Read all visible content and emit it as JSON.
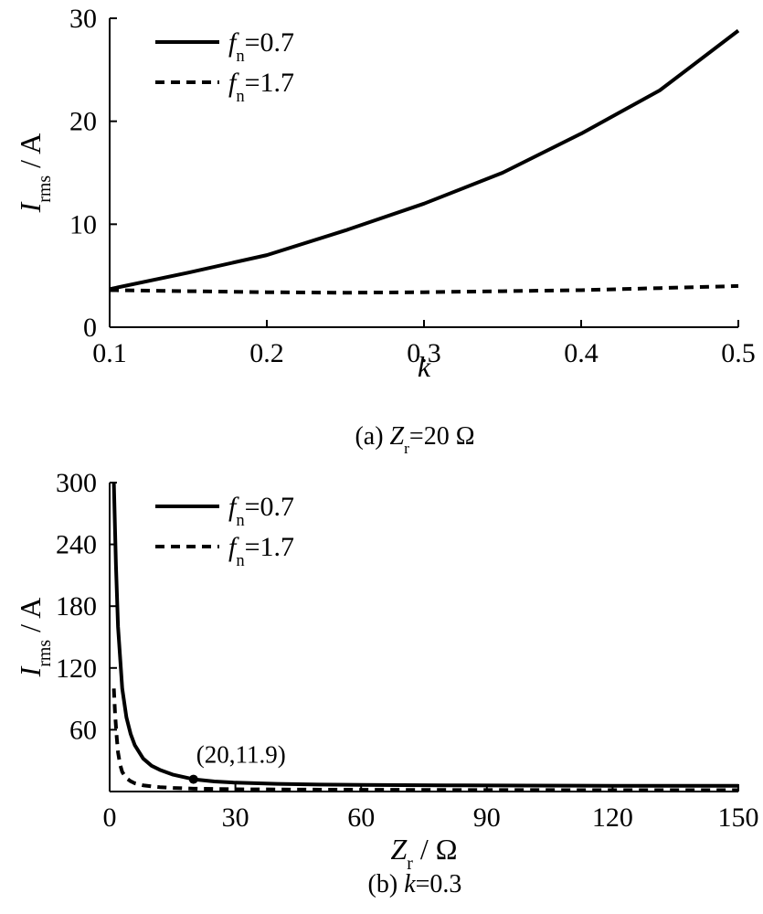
{
  "chart_data": [
    {
      "type": "line",
      "caption": {
        "prefix": "(a)",
        "var": "Z",
        "sub": "r",
        "rest": "=20 Ω"
      },
      "xlabel": {
        "var": "k",
        "sub": "",
        "rest": ""
      },
      "ylabel": {
        "var": "I",
        "sub": "rms",
        "rest": " / A"
      },
      "xlim": [
        0.1,
        0.5
      ],
      "ylim": [
        0,
        30
      ],
      "xticks": [
        0.1,
        0.2,
        0.3,
        0.4,
        0.5
      ],
      "xtick_labels": [
        "0.1",
        "0.2",
        "0.3",
        "0.4",
        "0.5"
      ],
      "yticks": [
        0,
        10,
        20,
        30
      ],
      "ytick_labels": [
        "0",
        "10",
        "20",
        "30"
      ],
      "legend_position": "top-left",
      "series": [
        {
          "name": {
            "var": "f",
            "sub": "n",
            "rest": "=0.7"
          },
          "style": "solid",
          "x": [
            0.1,
            0.15,
            0.2,
            0.25,
            0.3,
            0.35,
            0.4,
            0.45,
            0.5
          ],
          "y": [
            3.7,
            5.3,
            7.0,
            9.4,
            12.0,
            15.0,
            18.8,
            23.0,
            28.8
          ]
        },
        {
          "name": {
            "var": "f",
            "sub": "n",
            "rest": "=1.7"
          },
          "style": "dashed",
          "x": [
            0.1,
            0.15,
            0.2,
            0.25,
            0.3,
            0.35,
            0.4,
            0.45,
            0.5
          ],
          "y": [
            3.6,
            3.5,
            3.4,
            3.35,
            3.4,
            3.5,
            3.6,
            3.8,
            4.0
          ]
        }
      ]
    },
    {
      "type": "line",
      "caption": {
        "prefix": "(b)",
        "var": "k",
        "sub": "",
        "rest": "=0.3"
      },
      "xlabel": {
        "var": "Z",
        "sub": "r",
        "rest": " / Ω"
      },
      "ylabel": {
        "var": "I",
        "sub": "rms",
        "rest": " / A"
      },
      "xlim": [
        0,
        150
      ],
      "ylim": [
        0,
        300
      ],
      "xticks": [
        0,
        30,
        60,
        90,
        120,
        150
      ],
      "xtick_labels": [
        "0",
        "30",
        "60",
        "90",
        "120",
        "150"
      ],
      "yticks": [
        60,
        120,
        180,
        240,
        300
      ],
      "ytick_labels": [
        "60",
        "120",
        "180",
        "240",
        "300"
      ],
      "legend_position": "top-left",
      "annotation": {
        "text": "(20,11.9)",
        "x": 20,
        "y": 11.9
      },
      "series": [
        {
          "name": {
            "var": "f",
            "sub": "n",
            "rest": "=0.7"
          },
          "style": "solid",
          "x": [
            1,
            1.5,
            2,
            3,
            4,
            5,
            6,
            8,
            10,
            12,
            15,
            20,
            25,
            30,
            40,
            50,
            60,
            80,
            100,
            120,
            150
          ],
          "y": [
            300,
            220,
            160,
            100,
            72,
            56,
            45,
            32,
            25,
            21,
            16.5,
            11.9,
            9.8,
            8.6,
            7.4,
            6.8,
            6.4,
            6.0,
            5.8,
            5.6,
            5.5
          ]
        },
        {
          "name": {
            "var": "f",
            "sub": "n",
            "rest": "=1.7"
          },
          "style": "dashed",
          "x": [
            1,
            1.3,
            1.7,
            2,
            2.5,
            3,
            4,
            5,
            6,
            8,
            10,
            12,
            15,
            20,
            30,
            50,
            80,
            100,
            150
          ],
          "y": [
            100,
            75,
            52,
            38,
            26,
            19,
            13,
            10,
            8,
            6,
            5,
            4.2,
            3.5,
            2.8,
            2.2,
            1.8,
            1.5,
            1.4,
            1.3
          ]
        }
      ]
    }
  ]
}
